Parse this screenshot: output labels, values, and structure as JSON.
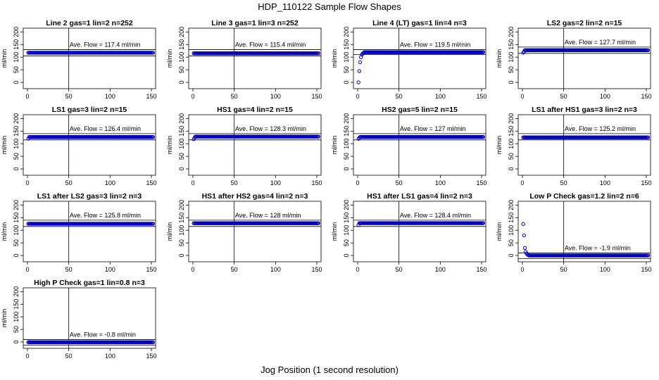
{
  "title": "HDP_110122  Sample Flow Shapes",
  "xlabel": "Jog Position (1 second resolution)",
  "colors": {
    "points": "#0000cc",
    "axis": "#000000"
  },
  "chart_data": [
    {
      "type": "scatter",
      "title": "Line 2 gas=1 lin=2 n=252",
      "ylabel": "ml/min",
      "xlim": [
        0,
        150
      ],
      "ylim": [
        -25,
        215
      ],
      "xticks": [
        0,
        50,
        100,
        150
      ],
      "yticks": [
        0,
        50,
        100,
        150,
        200
      ],
      "ref_lines": {
        "x": 50,
        "y": [
          105,
          130
        ]
      },
      "annotation": "Ave. Flow =  117.4  ml/min",
      "series": [
        {
          "shape": "flat",
          "level": 117.4,
          "n": 152
        }
      ]
    },
    {
      "type": "scatter",
      "title": "Line 3 gas=1 lin=3 n=252",
      "ylabel": "ml/min",
      "xlim": [
        0,
        150
      ],
      "ylim": [
        -25,
        215
      ],
      "xticks": [
        0,
        50,
        100,
        150
      ],
      "yticks": [
        0,
        50,
        100,
        150,
        200
      ],
      "ref_lines": {
        "x": 50,
        "y": [
          105,
          130
        ]
      },
      "annotation": "Ave. Flow =  115.4  ml/min",
      "series": [
        {
          "shape": "flat",
          "level": 115.4,
          "n": 152
        }
      ]
    },
    {
      "type": "scatter",
      "title": "Line 4 (LT) gas=1 lin=4 n=3",
      "ylabel": "ml/min",
      "xlim": [
        0,
        150
      ],
      "ylim": [
        -25,
        215
      ],
      "xticks": [
        0,
        50,
        100,
        150
      ],
      "yticks": [
        0,
        50,
        100,
        150,
        200
      ],
      "ref_lines": {
        "x": 50,
        "y": [
          110,
          130
        ]
      },
      "annotation": "Ave. Flow =  119.5  ml/min",
      "series": [
        {
          "shape": "ramp",
          "level": 119.5,
          "n": 152,
          "start": [
            [
              1,
              0
            ],
            [
              2,
              45
            ],
            [
              3,
              80
            ],
            [
              4,
              100
            ],
            [
              5,
              110
            ],
            [
              6,
              114
            ],
            [
              7,
              117
            ]
          ]
        }
      ]
    },
    {
      "type": "scatter",
      "title": "LS2 gas=2 lin=2 n=15",
      "ylabel": "ml/min",
      "xlim": [
        0,
        150
      ],
      "ylim": [
        -25,
        215
      ],
      "xticks": [
        0,
        50,
        100,
        150
      ],
      "yticks": [
        0,
        50,
        100,
        150,
        200
      ],
      "ref_lines": {
        "x": 50,
        "y": [
          115,
          140
        ]
      },
      "annotation": "Ave. Flow =  127.7  ml/min",
      "series": [
        {
          "shape": "flat",
          "level": 127.7,
          "n": 152,
          "start": [
            [
              1,
              118
            ],
            [
              2,
              122
            ]
          ]
        }
      ]
    },
    {
      "type": "scatter",
      "title": "LS1 gas=3 lin=2 n=15",
      "ylabel": "ml/min",
      "xlim": [
        0,
        150
      ],
      "ylim": [
        -25,
        215
      ],
      "xticks": [
        0,
        50,
        100,
        150
      ],
      "yticks": [
        0,
        50,
        100,
        150,
        200
      ],
      "ref_lines": {
        "x": 50,
        "y": [
          115,
          140
        ]
      },
      "annotation": "Ave. Flow =  126.4  ml/min",
      "series": [
        {
          "shape": "flat",
          "level": 126.4,
          "n": 152,
          "start": [
            [
              1,
              120
            ]
          ]
        }
      ]
    },
    {
      "type": "scatter",
      "title": "HS1 gas=4 lin=2 n=15",
      "ylabel": "ml/min",
      "xlim": [
        0,
        150
      ],
      "ylim": [
        -25,
        215
      ],
      "xticks": [
        0,
        50,
        100,
        150
      ],
      "yticks": [
        0,
        50,
        100,
        150,
        200
      ],
      "ref_lines": {
        "x": 50,
        "y": [
          115,
          140
        ]
      },
      "annotation": "Ave. Flow =  128.3  ml/min",
      "series": [
        {
          "shape": "flat",
          "level": 128.3,
          "n": 152,
          "start": [
            [
              1,
              118
            ],
            [
              2,
              124
            ]
          ]
        }
      ]
    },
    {
      "type": "scatter",
      "title": "HS2 gas=5 lin=2 n=15",
      "ylabel": "ml/min",
      "xlim": [
        0,
        150
      ],
      "ylim": [
        -25,
        215
      ],
      "xticks": [
        0,
        50,
        100,
        150
      ],
      "yticks": [
        0,
        50,
        100,
        150,
        200
      ],
      "ref_lines": {
        "x": 50,
        "y": [
          115,
          140
        ]
      },
      "annotation": "Ave. Flow =  127  ml/min",
      "series": [
        {
          "shape": "flat",
          "level": 127,
          "n": 152,
          "start": [
            [
              1,
              119
            ],
            [
              2,
              123
            ]
          ]
        }
      ]
    },
    {
      "type": "scatter",
      "title": "LS1 after HS1 gas=3 lin=2 n=3",
      "ylabel": "ml/min",
      "xlim": [
        0,
        150
      ],
      "ylim": [
        -25,
        215
      ],
      "xticks": [
        0,
        50,
        100,
        150
      ],
      "yticks": [
        0,
        50,
        100,
        150,
        200
      ],
      "ref_lines": {
        "x": 50,
        "y": [
          115,
          140
        ]
      },
      "annotation": "Ave. Flow =  125.2  ml/min",
      "series": [
        {
          "shape": "flat",
          "level": 125.2,
          "n": 152
        }
      ]
    },
    {
      "type": "scatter",
      "title": "LS1 after LS2 gas=3 lin=2 n=3",
      "ylabel": "ml/min",
      "xlim": [
        0,
        150
      ],
      "ylim": [
        -25,
        215
      ],
      "xticks": [
        0,
        50,
        100,
        150
      ],
      "yticks": [
        0,
        50,
        100,
        150,
        200
      ],
      "ref_lines": {
        "x": 50,
        "y": [
          115,
          140
        ]
      },
      "annotation": "Ave. Flow =  125.8  ml/min",
      "series": [
        {
          "shape": "flat",
          "level": 125.8,
          "n": 152
        }
      ]
    },
    {
      "type": "scatter",
      "title": "HS1 after HS2 gas=4 lin=2 n=3",
      "ylabel": "ml/min",
      "xlim": [
        0,
        150
      ],
      "ylim": [
        -25,
        215
      ],
      "xticks": [
        0,
        50,
        100,
        150
      ],
      "yticks": [
        0,
        50,
        100,
        150,
        200
      ],
      "ref_lines": {
        "x": 50,
        "y": [
          115,
          140
        ]
      },
      "annotation": "Ave. Flow =  128  ml/min",
      "series": [
        {
          "shape": "flat",
          "level": 128,
          "n": 152
        }
      ]
    },
    {
      "type": "scatter",
      "title": "HS1 after LS1 gas=4 lin=2 n=3",
      "ylabel": "ml/min",
      "xlim": [
        0,
        150
      ],
      "ylim": [
        -25,
        215
      ],
      "xticks": [
        0,
        50,
        100,
        150
      ],
      "yticks": [
        0,
        50,
        100,
        150,
        200
      ],
      "ref_lines": {
        "x": 50,
        "y": [
          115,
          140
        ]
      },
      "annotation": "Ave. Flow =  128.4  ml/min",
      "series": [
        {
          "shape": "flat",
          "level": 128.4,
          "n": 152,
          "start": [
            [
              1,
              121
            ]
          ]
        }
      ]
    },
    {
      "type": "scatter",
      "title": "Low P Check gas=1.2 lin=2 n=6",
      "ylabel": "ml/min",
      "xlim": [
        0,
        150
      ],
      "ylim": [
        -25,
        215
      ],
      "xticks": [
        0,
        50,
        100,
        150
      ],
      "yticks": [
        0,
        50,
        100,
        150,
        200
      ],
      "ref_lines": {
        "x": 50,
        "y": [
          -12,
          10
        ]
      },
      "annotation": "Ave. Flow =  -1.9  ml/min",
      "series": [
        {
          "shape": "decay",
          "level": 0,
          "n": 152,
          "start": [
            [
              1,
              125
            ],
            [
              2,
              80
            ],
            [
              3,
              30
            ],
            [
              4,
              15
            ],
            [
              5,
              8
            ],
            [
              6,
              4
            ],
            [
              7,
              2
            ]
          ]
        }
      ]
    },
    {
      "type": "scatter",
      "title": "High P Check gas=1 lin=0.8 n=3",
      "ylabel": "ml/min",
      "xlim": [
        0,
        150
      ],
      "ylim": [
        -25,
        215
      ],
      "xticks": [
        0,
        50,
        100,
        150
      ],
      "yticks": [
        0,
        50,
        100,
        150,
        200
      ],
      "ref_lines": {
        "x": 50,
        "y": [
          -12,
          10
        ]
      },
      "annotation": "Ave. Flow =  -0.8  ml/min",
      "series": [
        {
          "shape": "flat",
          "level": -0.8,
          "n": 152
        }
      ]
    }
  ]
}
